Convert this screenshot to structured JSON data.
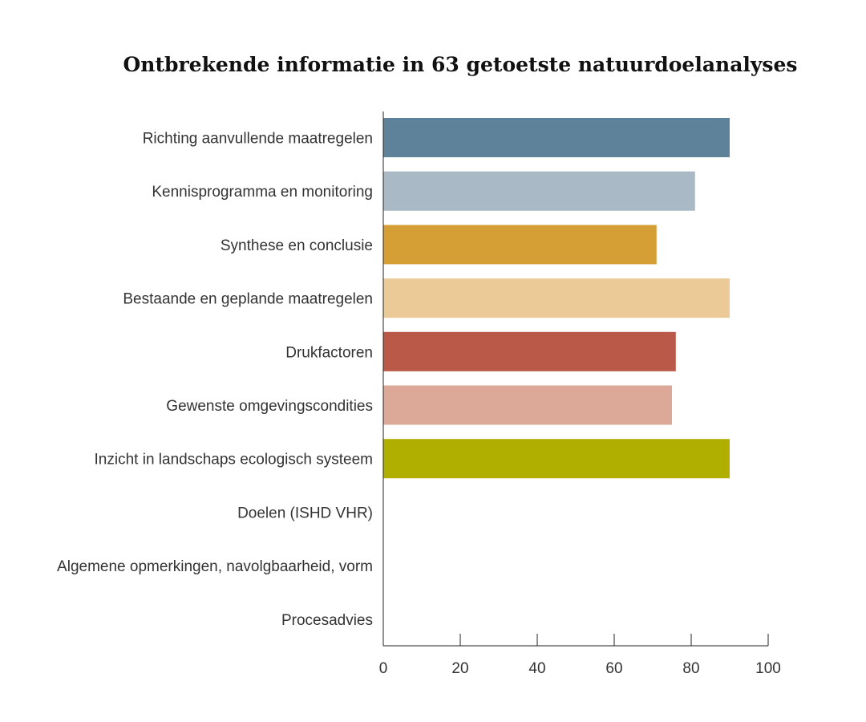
{
  "chart_data": {
    "type": "bar",
    "orientation": "horizontal",
    "title": "Ontbrekende informatie in 63 getoetste natuurdoelanalyses",
    "xlabel": "",
    "ylabel": "",
    "categories": [
      "Richting aanvullende maatregelen",
      "Kennisprogramma en monitoring",
      "Synthese en conclusie",
      "Bestaande en geplande maatregelen",
      "Drukfactoren",
      "Gewenste omgevingscondities",
      "Inzicht in landschaps ecologisch systeem",
      "Doelen (ISHD VHR)",
      "Algemene opmerkingen, navolgbaarheid, vorm",
      "Procesadvies"
    ],
    "values": [
      90,
      81,
      71,
      90,
      76,
      75,
      90,
      0,
      0,
      0
    ],
    "colors": [
      "#5d8299",
      "#a9b9c6",
      "#d69f36",
      "#ebca97",
      "#bb5948",
      "#dca998",
      "#b0af00",
      "#ffffff",
      "#ffffff",
      "#ffffff"
    ],
    "xlim": [
      0,
      100
    ],
    "xticks": [
      0,
      20,
      40,
      60,
      80,
      100
    ],
    "grid": false,
    "legend": "none"
  }
}
